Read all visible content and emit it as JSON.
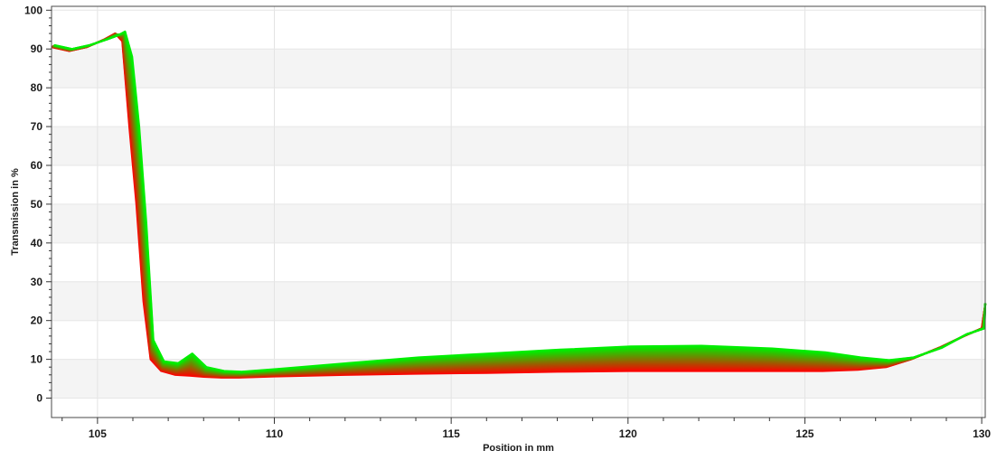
{
  "chart_data": {
    "type": "line",
    "title": "",
    "xlabel": "Position in mm",
    "ylabel": "Transmission in %",
    "xlim": [
      103.7,
      130.1
    ],
    "ylim": [
      -5,
      101
    ],
    "x_ticks": [
      105,
      110,
      115,
      120,
      125,
      130
    ],
    "y_ticks": [
      0,
      10,
      20,
      30,
      40,
      50,
      60,
      70,
      80,
      90,
      100
    ],
    "x_minor_step": 1,
    "y_minor_step": 2,
    "grid": true,
    "legend": "none",
    "colors": {
      "first_series": "#ff0000",
      "last_series": "#00ee00",
      "band_stripe": "#f4f4f4"
    },
    "series_count": 24,
    "series": [
      {
        "x": [
          103.7,
          104.2,
          104.7,
          105.2,
          105.5,
          105.7,
          105.9,
          106.1,
          106.3,
          106.5,
          106.8,
          107.2,
          107.6,
          108.0,
          108.5,
          109.0,
          110.0,
          112.0,
          114.0,
          116.0,
          118.0,
          120.0,
          122.0,
          124.0,
          125.5,
          126.5,
          127.3,
          128.0,
          128.8,
          129.5,
          130.0,
          130.1
        ],
        "values": [
          90.5,
          89.5,
          90.5,
          92.5,
          94.0,
          92.0,
          70.0,
          50.0,
          25.0,
          10.0,
          7.0,
          6.0,
          5.8,
          5.5,
          5.3,
          5.3,
          5.6,
          6.0,
          6.3,
          6.5,
          6.8,
          7.0,
          7.0,
          7.0,
          7.0,
          7.3,
          8.0,
          10.0,
          13.0,
          16.0,
          18.0,
          24.0
        ]
      },
      {
        "x": [
          103.7,
          104.2,
          104.7,
          105.2,
          105.5,
          105.7,
          105.9,
          106.1,
          106.3,
          106.5,
          106.8,
          107.2,
          107.6,
          108.0,
          108.5,
          109.0,
          110.0,
          112.0,
          114.0,
          116.0,
          118.0,
          120.0,
          122.0,
          124.0,
          125.5,
          126.5,
          127.3,
          128.0,
          128.8,
          129.5,
          130.0,
          130.1
        ],
        "values": [
          91.0,
          90.0,
          91.0,
          92.5,
          93.5,
          94.5,
          88.0,
          70.0,
          45.0,
          15.0,
          9.5,
          9.0,
          11.5,
          8.0,
          7.0,
          6.8,
          7.5,
          9.0,
          10.5,
          11.5,
          12.5,
          13.3,
          13.5,
          12.8,
          11.8,
          10.5,
          9.8,
          10.5,
          13.0,
          16.5,
          18.0,
          24.5
        ]
      }
    ]
  }
}
